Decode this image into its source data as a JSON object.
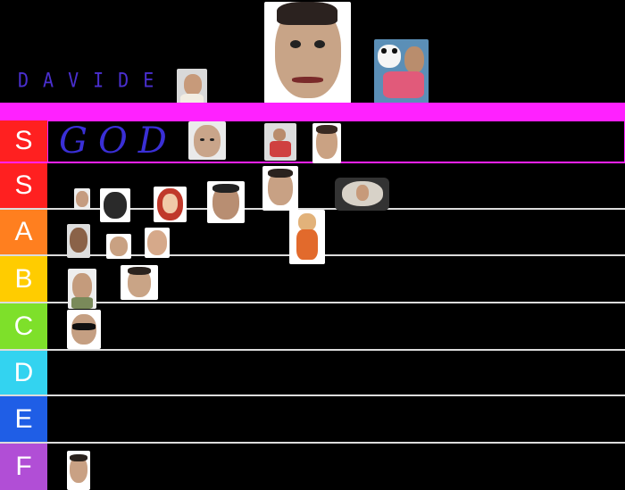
{
  "header": {
    "handwritten_name": "DAVIDE"
  },
  "tiers": [
    {
      "label": "S",
      "color": "#ff2020",
      "note": "GOD"
    },
    {
      "label": "S",
      "color": "#ff2020"
    },
    {
      "label": "A",
      "color": "#ff7f1f"
    },
    {
      "label": "B",
      "color": "#ffcc00"
    },
    {
      "label": "C",
      "color": "#7ee02a"
    },
    {
      "label": "D",
      "color": "#33d3f0"
    },
    {
      "label": "E",
      "color": "#1f5ee6"
    },
    {
      "label": "F",
      "color": "#b14ed6"
    }
  ],
  "colors": {
    "background": "#000000",
    "highlight_band": "#ff21ff",
    "separator": "#dcdcdc",
    "handwriting": "#4a2fd0"
  },
  "icons": [
    "face-photo-icon"
  ]
}
